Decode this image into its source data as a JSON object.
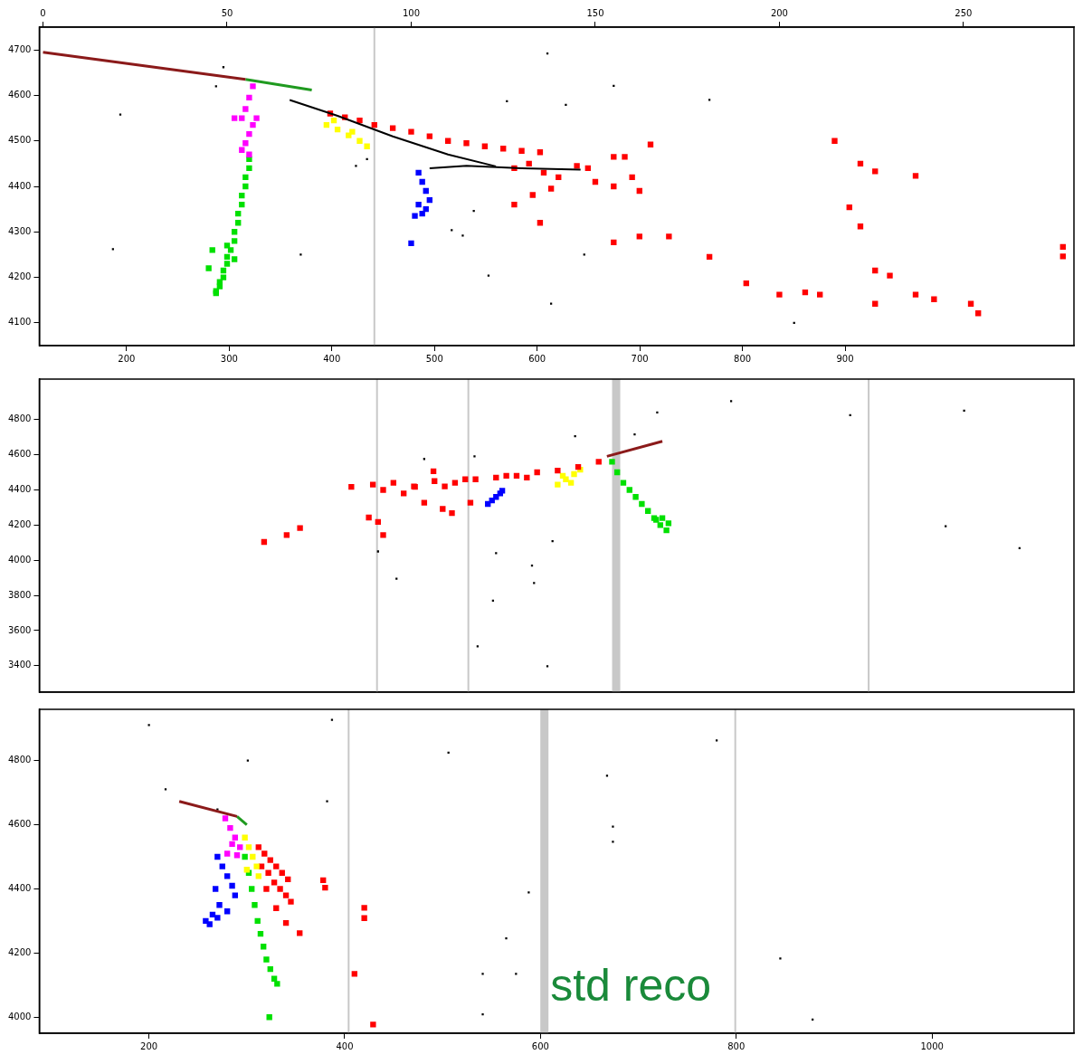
{
  "chart_data": [
    {
      "type": "scatter",
      "xlim": [
        -1,
        280
      ],
      "xticks": [
        0,
        50,
        100,
        150,
        200,
        250
      ],
      "x2lim": [
        115,
        1123
      ],
      "x2ticks": [
        200,
        300,
        400,
        500,
        600,
        700,
        800,
        900
      ],
      "ylim": [
        4050,
        4750
      ],
      "yticks": [
        4100,
        4200,
        4300,
        4400,
        4500,
        4600,
        4700
      ],
      "grid": false,
      "boundaries": [
        {
          "x": 90
        }
      ],
      "series": [
        {
          "color": "#8b1a1a",
          "marker": "none",
          "line_style": "solid",
          "x": [
            0,
            55
          ],
          "values": [
            4695,
            4635
          ]
        },
        {
          "color": "#1f9a1f",
          "marker": "none",
          "line_style": "solid",
          "x": [
            55,
            73
          ],
          "values": [
            4635,
            4612
          ]
        },
        {
          "color": "#000000",
          "marker": "none",
          "line_style": "solid",
          "x": [
            67,
            80,
            95,
            110,
            123
          ],
          "values": [
            4590,
            4555,
            4510,
            4470,
            4444
          ]
        },
        {
          "color": "#000000",
          "marker": "none",
          "line_style": "solid",
          "x": [
            105,
            115,
            130,
            146
          ],
          "values": [
            4440,
            4445,
            4440,
            4437
          ]
        },
        {
          "color": "#ff00ff",
          "marker": "square",
          "x": [
            57,
            56,
            55,
            54,
            57,
            56,
            55,
            52,
            58,
            54,
            56
          ],
          "values": [
            4620,
            4595,
            4570,
            4550,
            4535,
            4515,
            4495,
            4550,
            4550,
            4480,
            4470
          ]
        },
        {
          "color": "#00e000",
          "marker": "square",
          "x": [
            56,
            56,
            55,
            55,
            54,
            54,
            53,
            53,
            52,
            52,
            51,
            50,
            50,
            49,
            49,
            48,
            48,
            47,
            47,
            46,
            50,
            52,
            45
          ],
          "values": [
            4460,
            4440,
            4420,
            4400,
            4380,
            4360,
            4340,
            4320,
            4300,
            4280,
            4260,
            4245,
            4230,
            4215,
            4200,
            4190,
            4180,
            4170,
            4165,
            4260,
            4270,
            4240,
            4220
          ]
        },
        {
          "color": "#ffff00",
          "marker": "square",
          "x": [
            77,
            80,
            83,
            86,
            88,
            79,
            84
          ],
          "values": [
            4535,
            4525,
            4512,
            4500,
            4488,
            4545,
            4520
          ]
        },
        {
          "color": "#0000ff",
          "marker": "square",
          "x": [
            102,
            103,
            104,
            105,
            104,
            101,
            103,
            102,
            100
          ],
          "values": [
            4430,
            4410,
            4390,
            4370,
            4350,
            4335,
            4340,
            4360,
            4275
          ]
        },
        {
          "color": "#ff0000",
          "marker": "square",
          "x": [
            78,
            82,
            86,
            90,
            95,
            100,
            105,
            110,
            115,
            120,
            125,
            130,
            135,
            128,
            132,
            136,
            140,
            145,
            150,
            155,
            160,
            138,
            148,
            158,
            162,
            155,
            165,
            128,
            133,
            135,
            155,
            162,
            170,
            181,
            191,
            200,
            207,
            211,
            215,
            222,
            226,
            237,
            219,
            222,
            226,
            230,
            226,
            237,
            242,
            252,
            254,
            277,
            277
          ],
          "values": [
            4560,
            4552,
            4545,
            4535,
            4528,
            4520,
            4510,
            4500,
            4495,
            4488,
            4483,
            4478,
            4475,
            4440,
            4450,
            4430,
            4420,
            4445,
            4410,
            4400,
            4420,
            4395,
            4440,
            4465,
            4390,
            4465,
            4492,
            4360,
            4381,
            4320,
            4277,
            4290,
            4290,
            4245,
            4187,
            4162,
            4167,
            4162,
            4500,
            4450,
            4433,
            4423,
            4354,
            4312,
            4215,
            4204,
            4142,
            4162,
            4152,
            4142,
            4121,
            4267,
            4246
          ]
        },
        {
          "color": "#000000",
          "marker": "dot",
          "x": [
            21,
            19,
            70,
            137,
            155,
            126,
            142,
            181,
            147,
            138,
            204,
            117,
            114,
            121,
            111,
            49,
            47,
            85,
            88
          ],
          "values": [
            4558,
            4262,
            4250,
            4692,
            4621,
            4587,
            4579,
            4590,
            4250,
            4142,
            4100,
            4346,
            4292,
            4204,
            4304,
            4662,
            4620,
            4445,
            4460
          ]
        }
      ]
    },
    {
      "type": "scatter",
      "xlim": [
        115,
        1123
      ],
      "ylim": [
        3250,
        5030
      ],
      "yticks": [
        3400,
        3600,
        3800,
        4000,
        4200,
        4400,
        4600,
        4800
      ],
      "grid": false,
      "tick_labels": "y",
      "boundaries": [
        {
          "x": 444
        },
        {
          "x": 533
        },
        {
          "x": 677,
          "line_style": "thick"
        },
        {
          "x": 923
        }
      ],
      "series": [
        {
          "color": "#8b1a1a",
          "marker": "none",
          "line_style": "solid",
          "x": [
            668,
            722
          ],
          "values": [
            4591,
            4676
          ]
        },
        {
          "color": "#ff0000",
          "marker": "square",
          "x": [
            419,
            440,
            460,
            480,
            500,
            520,
            540,
            560,
            580,
            600,
            620,
            640,
            660,
            450,
            470,
            510,
            530,
            570,
            590,
            334,
            356,
            369,
            445,
            450,
            436,
            481,
            490,
            508,
            517,
            535,
            499
          ],
          "values": [
            4417,
            4430,
            4440,
            4420,
            4450,
            4440,
            4460,
            4470,
            4480,
            4500,
            4510,
            4530,
            4560,
            4400,
            4380,
            4420,
            4460,
            4480,
            4470,
            4104,
            4143,
            4183,
            4218,
            4143,
            4243,
            4417,
            4327,
            4292,
            4268,
            4327,
            4506
          ]
        },
        {
          "color": "#ffff00",
          "marker": "square",
          "x": [
            620,
            628,
            636,
            642,
            625,
            633
          ],
          "values": [
            4430,
            4460,
            4490,
            4515,
            4480,
            4440
          ]
        },
        {
          "color": "#0000ff",
          "marker": "square",
          "x": [
            552,
            556,
            560,
            564,
            566
          ],
          "values": [
            4320,
            4340,
            4360,
            4380,
            4395
          ]
        },
        {
          "color": "#00e000",
          "marker": "square",
          "x": [
            673,
            678,
            684,
            690,
            696,
            702,
            708,
            714,
            720,
            726,
            716,
            722,
            728
          ],
          "values": [
            4560,
            4500,
            4440,
            4400,
            4360,
            4320,
            4280,
            4240,
            4200,
            4170,
            4230,
            4240,
            4210
          ]
        },
        {
          "color": "#000000",
          "marker": "dot",
          "x": [
            490,
            539,
            637,
            717,
            789,
            905,
            1016,
            595,
            615,
            597,
            557,
            542,
            610,
            463,
            998,
            1070,
            695,
            445,
            560
          ],
          "values": [
            4576,
            4591,
            4705,
            4840,
            4904,
            4825,
            4850,
            3969,
            4108,
            3870,
            3770,
            3511,
            3397,
            3895,
            4193,
            4069,
            4715,
            4050,
            4040
          ]
        }
      ]
    },
    {
      "type": "scatter",
      "xlim": [
        88,
        1145
      ],
      "xticks": [
        200,
        400,
        600,
        800,
        1000
      ],
      "ylim": [
        3950,
        4960
      ],
      "yticks": [
        4000,
        4200,
        4400,
        4600,
        4800
      ],
      "grid": false,
      "boundaries": [
        {
          "x": 404
        },
        {
          "x": 604,
          "line_style": "thick"
        },
        {
          "x": 799
        }
      ],
      "annotations": [
        {
          "text": "std reco",
          "x": 610,
          "y": 4090,
          "color": "#1a8a3a"
        }
      ],
      "series": [
        {
          "color": "#8b1a1a",
          "marker": "none",
          "line_style": "solid",
          "x": [
            231,
            290
          ],
          "values": [
            4673,
            4626
          ]
        },
        {
          "color": "#1f9a1f",
          "marker": "none",
          "line_style": "solid",
          "x": [
            290,
            300
          ],
          "values": [
            4626,
            4600
          ]
        },
        {
          "color": "#ff00ff",
          "marker": "square",
          "x": [
            278,
            283,
            288,
            293,
            280,
            290,
            285
          ],
          "values": [
            4620,
            4590,
            4560,
            4530,
            4510,
            4505,
            4540
          ]
        },
        {
          "color": "#0000ff",
          "marker": "square",
          "x": [
            270,
            275,
            280,
            285,
            288,
            272,
            265,
            258,
            262,
            270,
            280,
            268
          ],
          "values": [
            4500,
            4470,
            4440,
            4410,
            4380,
            4350,
            4320,
            4300,
            4290,
            4310,
            4330,
            4400
          ]
        },
        {
          "color": "#ffff00",
          "marker": "square",
          "x": [
            298,
            302,
            306,
            310,
            312,
            300
          ],
          "values": [
            4560,
            4530,
            4500,
            4470,
            4440,
            4460
          ]
        },
        {
          "color": "#00e000",
          "marker": "square",
          "x": [
            298,
            302,
            305,
            308,
            311,
            314,
            317,
            320,
            324,
            328,
            331,
            323
          ],
          "values": [
            4500,
            4450,
            4400,
            4350,
            4300,
            4260,
            4220,
            4180,
            4150,
            4120,
            4104,
            4000
          ]
        },
        {
          "color": "#ff0000",
          "marker": "square",
          "x": [
            312,
            318,
            324,
            330,
            336,
            342,
            315,
            322,
            328,
            334,
            340,
            345,
            320,
            330,
            378,
            380,
            420,
            420,
            410,
            429,
            354,
            340
          ],
          "values": [
            4530,
            4510,
            4490,
            4470,
            4450,
            4430,
            4470,
            4450,
            4420,
            4400,
            4380,
            4360,
            4400,
            4340,
            4427,
            4404,
            4341,
            4309,
            4135,
            3977,
            4262,
            4294
          ]
        },
        {
          "color": "#000000",
          "marker": "dot",
          "x": [
            200,
            217,
            270,
            301,
            387,
            382,
            506,
            668,
            674,
            674,
            588,
            565,
            541,
            575,
            780,
            845,
            878,
            541
          ],
          "values": [
            4911,
            4711,
            4648,
            4800,
            4927,
            4673,
            4825,
            4753,
            4594,
            4547,
            4389,
            4246,
            4135,
            4135,
            4863,
            4183,
            3993,
            4009
          ]
        }
      ]
    }
  ]
}
